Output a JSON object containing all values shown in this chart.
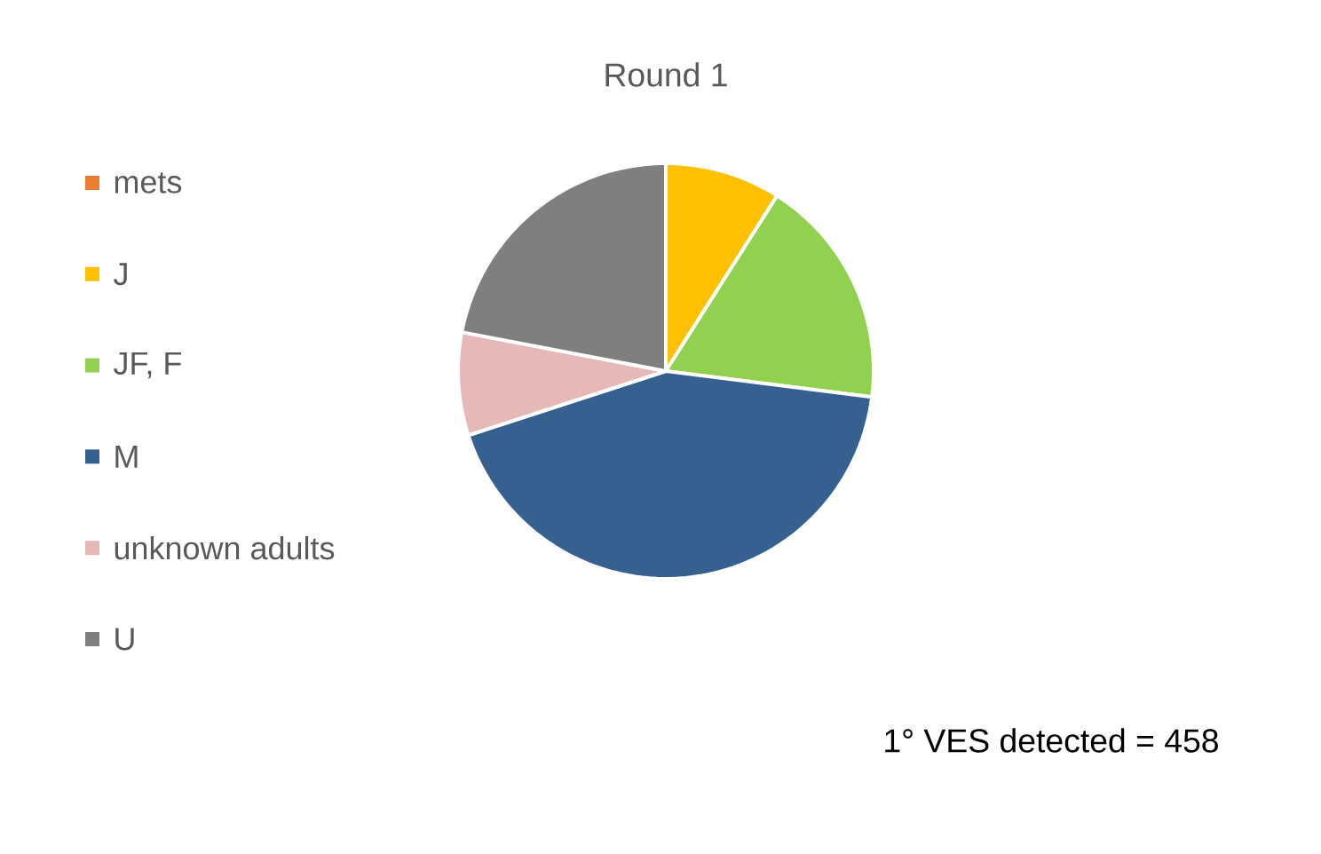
{
  "chart_data": {
    "type": "pie",
    "title": "Round 1",
    "categories": [
      "mets",
      "J",
      "JF, F",
      "M",
      "unknown adults",
      "U"
    ],
    "values": [
      0,
      9,
      18,
      43,
      8,
      22
    ],
    "colors": [
      "#ed7d31",
      "#ffc000",
      "#92d050",
      "#35608f",
      "#e6b9b8",
      "#7f7f7f"
    ],
    "legend": "left",
    "annotations": [
      "1° VES detected = 458"
    ]
  }
}
